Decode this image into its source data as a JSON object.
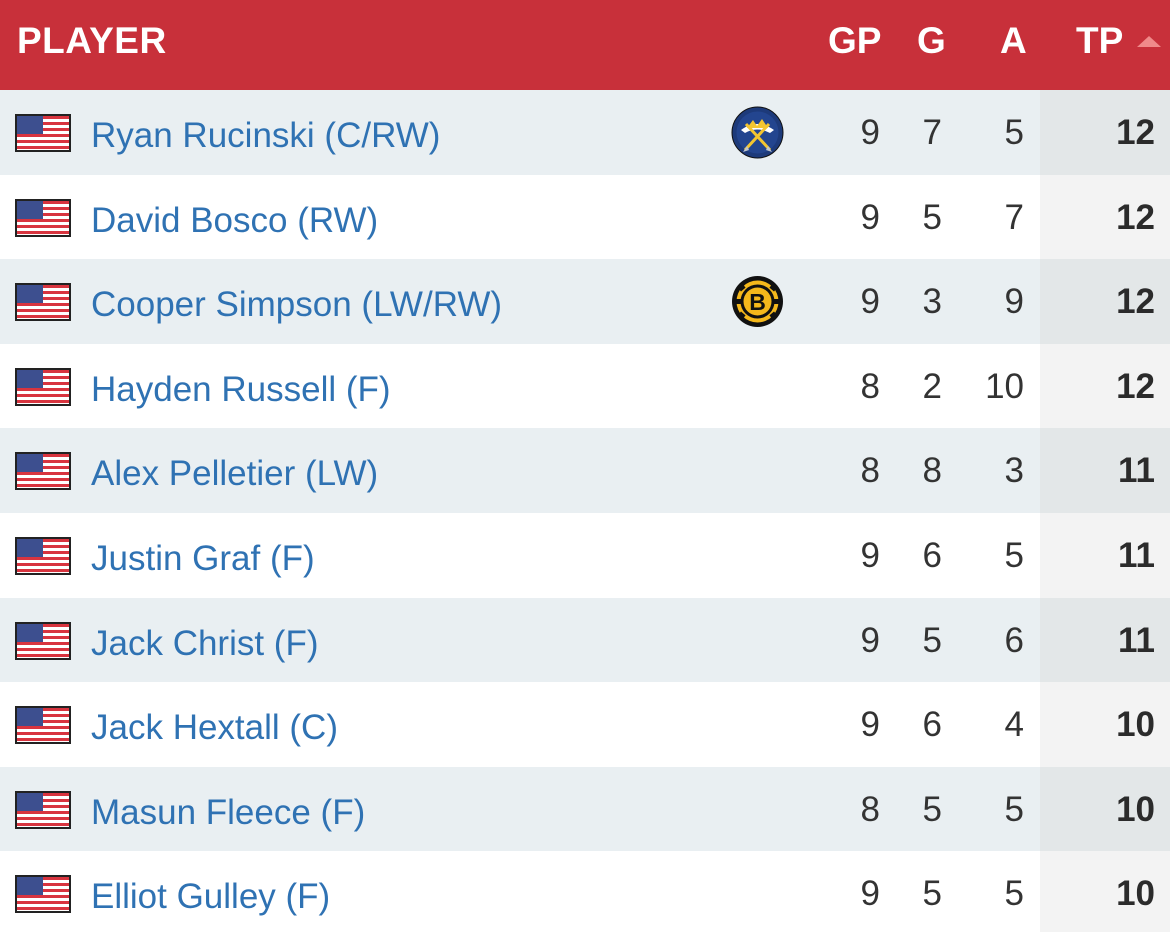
{
  "header": {
    "player": "PLAYER",
    "gp": "GP",
    "g": "G",
    "a": "A",
    "tp": "TP",
    "sort_direction_icon": "sort-ascending-arrow",
    "background_color": "#c8303a"
  },
  "rows": [
    {
      "flag": "usa-flag",
      "name": "Ryan Rucinski (C/RW)",
      "team_logo": "buffalo-sabres-logo",
      "gp": "9",
      "g": "7",
      "a": "5",
      "tp": "12"
    },
    {
      "flag": "usa-flag",
      "name": "David Bosco (RW)",
      "team_logo": "",
      "gp": "9",
      "g": "5",
      "a": "7",
      "tp": "12"
    },
    {
      "flag": "usa-flag",
      "name": "Cooper Simpson (LW/RW)",
      "team_logo": "boston-bruins-logo",
      "gp": "9",
      "g": "3",
      "a": "9",
      "tp": "12"
    },
    {
      "flag": "usa-flag",
      "name": "Hayden Russell (F)",
      "team_logo": "",
      "gp": "8",
      "g": "2",
      "a": "10",
      "tp": "12"
    },
    {
      "flag": "usa-flag",
      "name": "Alex Pelletier (LW)",
      "team_logo": "",
      "gp": "8",
      "g": "8",
      "a": "3",
      "tp": "11"
    },
    {
      "flag": "usa-flag",
      "name": "Justin Graf (F)",
      "team_logo": "",
      "gp": "9",
      "g": "6",
      "a": "5",
      "tp": "11"
    },
    {
      "flag": "usa-flag",
      "name": "Jack Christ (F)",
      "team_logo": "",
      "gp": "9",
      "g": "5",
      "a": "6",
      "tp": "11"
    },
    {
      "flag": "usa-flag",
      "name": "Jack Hextall (C)",
      "team_logo": "",
      "gp": "9",
      "g": "6",
      "a": "4",
      "tp": "10"
    },
    {
      "flag": "usa-flag",
      "name": "Masun Fleece (F)",
      "team_logo": "",
      "gp": "8",
      "g": "5",
      "a": "5",
      "tp": "10"
    },
    {
      "flag": "usa-flag",
      "name": "Elliot Gulley (F)",
      "team_logo": "",
      "gp": "9",
      "g": "5",
      "a": "5",
      "tp": "10"
    }
  ]
}
